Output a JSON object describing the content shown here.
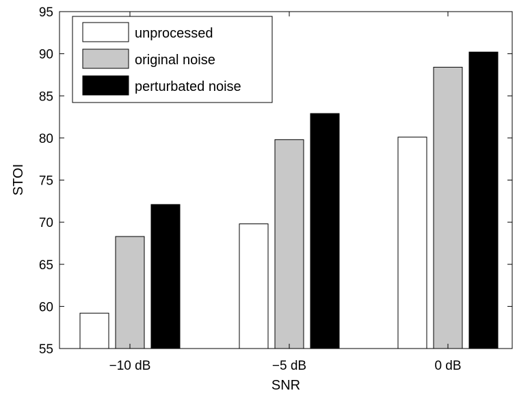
{
  "chart_data": {
    "type": "bar",
    "categories": [
      "−10 dB",
      "−5 dB",
      "0 dB"
    ],
    "series": [
      {
        "name": "unprocessed",
        "color": "#ffffff",
        "values": [
          59.2,
          69.8,
          80.1
        ]
      },
      {
        "name": "original noise",
        "color": "#c8c8c8",
        "values": [
          68.3,
          79.8,
          88.4
        ]
      },
      {
        "name": "perturbated noise",
        "color": "#000000",
        "values": [
          72.1,
          82.9,
          90.2
        ]
      }
    ],
    "title": "",
    "xlabel": "SNR",
    "ylabel": "STOI",
    "ylim": [
      55,
      95
    ],
    "yticks": [
      "55",
      "60",
      "65",
      "70",
      "75",
      "80",
      "85",
      "90",
      "95"
    ],
    "grid": false,
    "legend_position": "top-left"
  }
}
